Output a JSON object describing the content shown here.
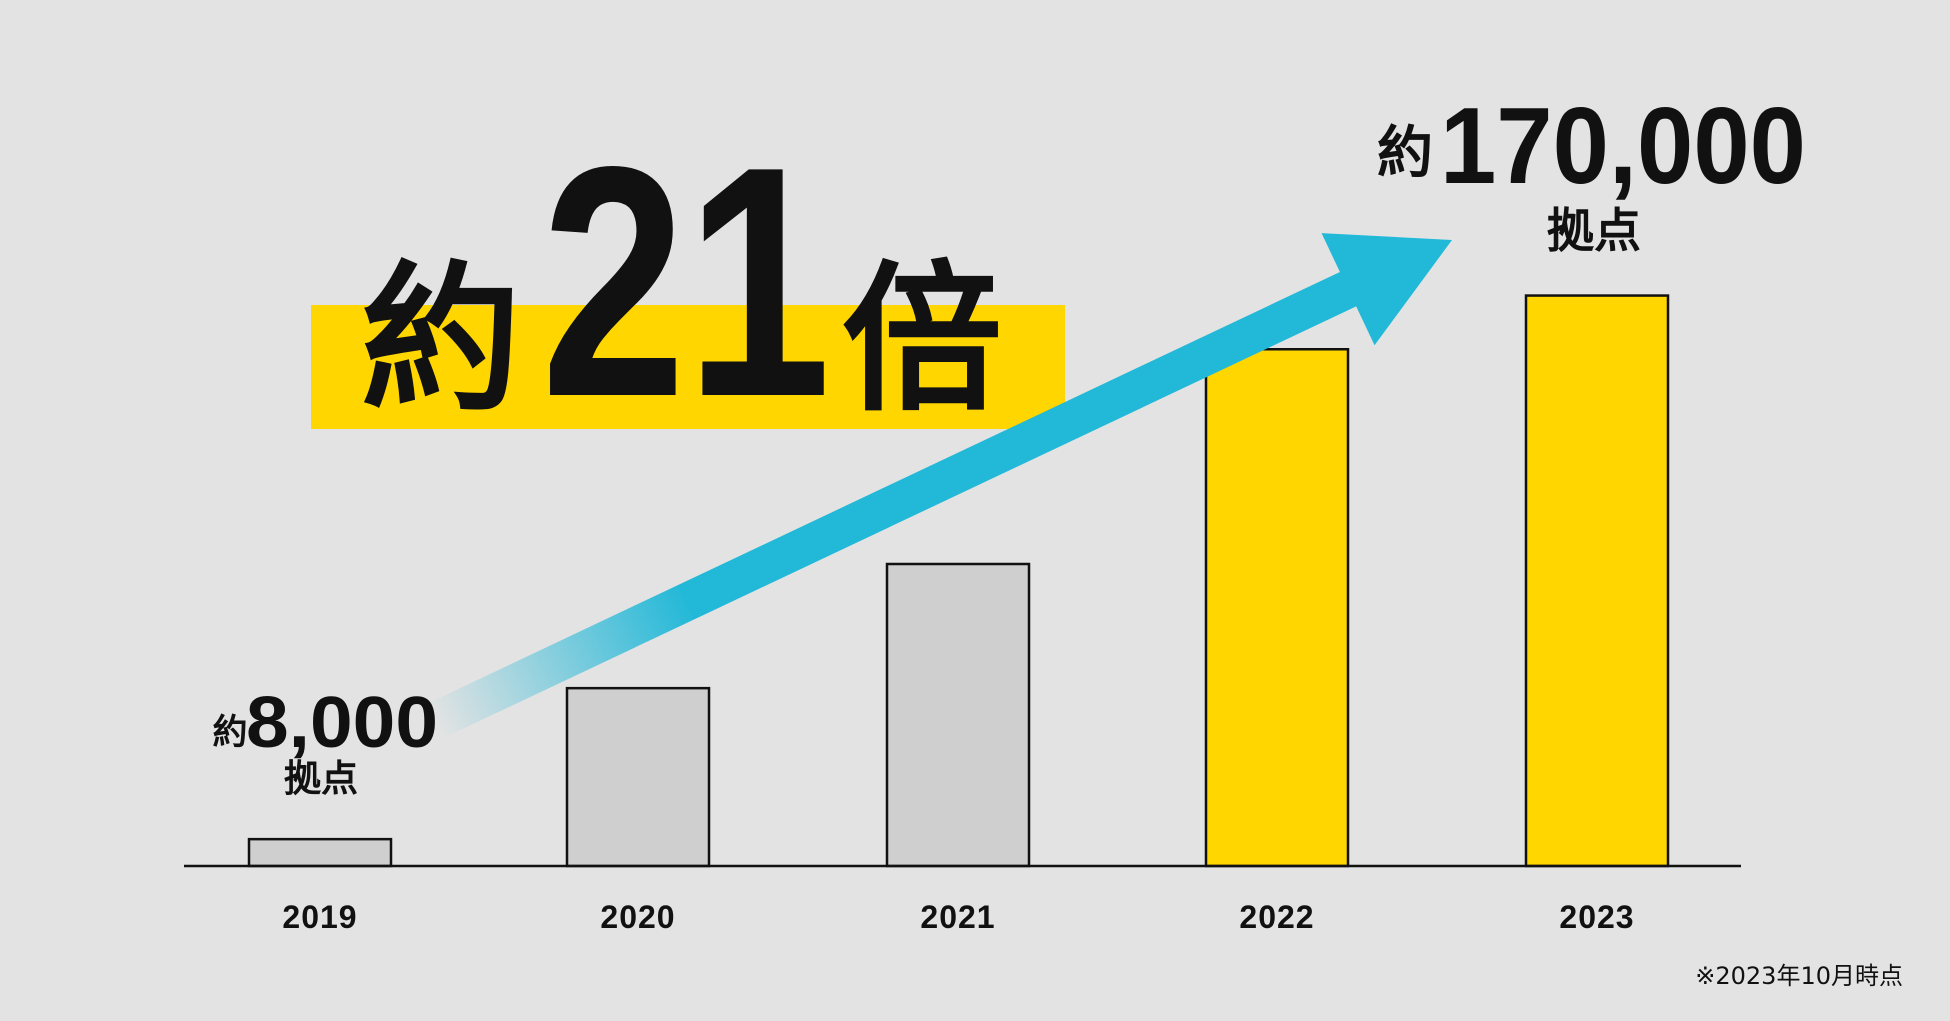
{
  "chart_data": {
    "type": "bar",
    "headline": [
      "約",
      "21",
      "倍"
    ],
    "categories": [
      "2019",
      "2020",
      "2021",
      "2022",
      "2023"
    ],
    "values": [
      8000,
      53000,
      90000,
      154000,
      170000
    ],
    "value_labels": [
      "8,000",
      null,
      null,
      null,
      "170,000"
    ],
    "label_prefix": "約",
    "label_unit": "拠点",
    "colors": [
      "#cfcfcf",
      "#cfcfcf",
      "#cfcfcf",
      "#ffd600",
      "#ffd600"
    ],
    "arrow_color": "#22b8d8",
    "ylim": [
      0,
      180000
    ],
    "note": "※2023年10月時点"
  }
}
